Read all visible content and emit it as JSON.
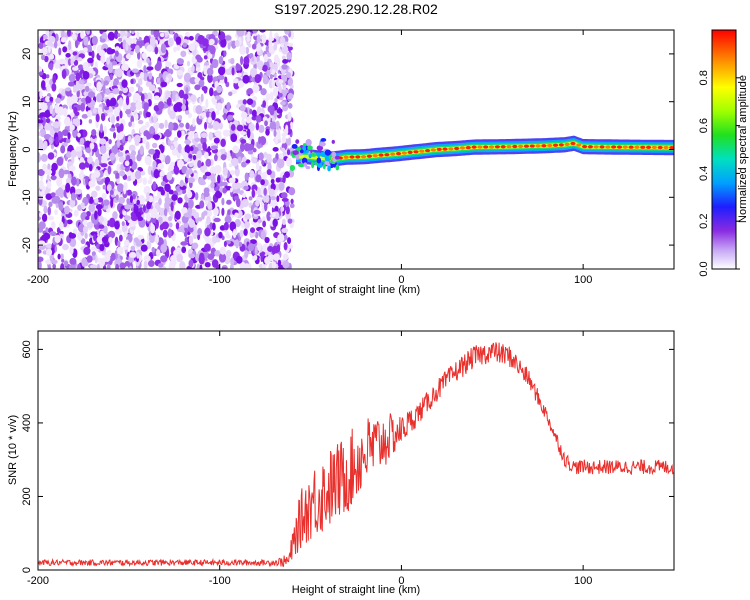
{
  "title": "S197.2025.290.12.28.R02",
  "chart_data": [
    {
      "type": "heatmap",
      "title": "S197.2025.290.12.28.R02",
      "xlabel": "Height of straight line (km)",
      "ylabel": "Frequency (Hz)",
      "xlim": [
        -200,
        150
      ],
      "ylim": [
        -25,
        25
      ],
      "x_ticks": [
        -200,
        -100,
        0,
        100
      ],
      "y_ticks": [
        -20,
        -10,
        0,
        10,
        20
      ],
      "x_tick_labels": [
        "-200",
        "-100",
        "0",
        "100"
      ],
      "y_tick_labels": [
        "-20",
        "-10",
        "0",
        "10",
        "20"
      ],
      "colorbar": {
        "label": "Normalized spectral amplitude",
        "range": [
          0,
          1
        ],
        "ticks": [
          0,
          0.2,
          0.4,
          0.6,
          0.8
        ],
        "tick_labels": [
          "0.0",
          "0.2",
          "0.4",
          "0.6",
          "0.8"
        ],
        "colormap": "rainbow"
      },
      "noise_region": {
        "x_range": [
          -200,
          -60
        ],
        "description_level": "low amplitude scattered"
      },
      "ridge": {
        "x": [
          -58,
          -52,
          -45,
          -38,
          -30,
          -20,
          -12,
          -5,
          0,
          10,
          20,
          30,
          40,
          60,
          80,
          90,
          95,
          100,
          120,
          150
        ],
        "y": [
          -1.5,
          -1.5,
          -1.8,
          -2.0,
          -1.6,
          -1.5,
          -1.2,
          -1.0,
          -0.8,
          -0.4,
          0.0,
          0.2,
          0.5,
          0.6,
          0.8,
          1.0,
          1.3,
          0.6,
          0.5,
          0.4
        ]
      },
      "grid": false
    },
    {
      "type": "line",
      "xlabel": "Height of straight line (km)",
      "ylabel": "SNR (10 * v/v)",
      "xlim": [
        -200,
        150
      ],
      "ylim": [
        0,
        650
      ],
      "x_ticks": [
        -200,
        -100,
        0,
        100
      ],
      "y_ticks": [
        0,
        200,
        400,
        600
      ],
      "x_tick_labels": [
        "-200",
        "-100",
        "0",
        "100"
      ],
      "y_tick_labels": [
        "0",
        "200",
        "400",
        "600"
      ],
      "series": [
        {
          "color": "#e8302d",
          "x": [
            -200,
            -150,
            -100,
            -70,
            -62,
            -58,
            -55,
            -50,
            -45,
            -40,
            -30,
            -20,
            -10,
            0,
            10,
            20,
            30,
            40,
            50,
            60,
            70,
            80,
            85,
            90,
            95,
            100,
            120,
            150
          ],
          "y": [
            20,
            20,
            20,
            20,
            25,
            100,
            140,
            180,
            200,
            220,
            260,
            320,
            350,
            380,
            430,
            490,
            540,
            580,
            595,
            580,
            520,
            420,
            360,
            300,
            280,
            280,
            280,
            280
          ],
          "noise_amp": [
            8,
            8,
            8,
            8,
            20,
            60,
            80,
            100,
            110,
            110,
            110,
            100,
            80,
            40,
            30,
            30,
            30,
            30,
            30,
            30,
            25,
            20,
            20,
            20,
            20,
            20,
            20,
            20
          ]
        }
      ],
      "grid": false
    }
  ]
}
